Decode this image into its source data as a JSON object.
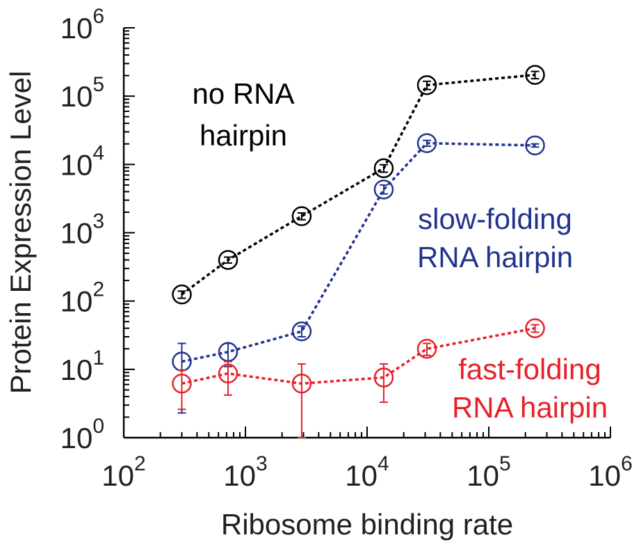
{
  "chart_data": {
    "type": "scatter",
    "title": "",
    "xlabel": "Ribosome binding rate",
    "ylabel": "Protein Expression Level",
    "xscale": "log",
    "yscale": "log",
    "xlim": [
      100,
      1000000
    ],
    "ylim": [
      1,
      1000000
    ],
    "grid": false,
    "x_ticks": [
      {
        "base": "10",
        "exp": "2",
        "value": 100
      },
      {
        "base": "10",
        "exp": "3",
        "value": 1000
      },
      {
        "base": "10",
        "exp": "4",
        "value": 10000
      },
      {
        "base": "10",
        "exp": "5",
        "value": 100000
      },
      {
        "base": "10",
        "exp": "6",
        "value": 1000000
      }
    ],
    "y_ticks": [
      {
        "base": "10",
        "exp": "0",
        "value": 1
      },
      {
        "base": "10",
        "exp": "1",
        "value": 10
      },
      {
        "base": "10",
        "exp": "2",
        "value": 100
      },
      {
        "base": "10",
        "exp": "3",
        "value": 1000
      },
      {
        "base": "10",
        "exp": "4",
        "value": 10000
      },
      {
        "base": "10",
        "exp": "5",
        "value": 100000
      },
      {
        "base": "10",
        "exp": "6",
        "value": 1000000
      }
    ],
    "series": [
      {
        "name": "no RNA hairpin",
        "label_lines": [
          "no RNA",
          "hairpin"
        ],
        "color": "#000000",
        "x": [
          300,
          720,
          2900,
          13700,
          31000,
          240000
        ],
        "y": [
          125,
          400,
          1750,
          8800,
          145000,
          205000
        ],
        "err_low": [
          110,
          360,
          1550,
          7700,
          125000,
          180000
        ],
        "err_high": [
          140,
          440,
          1950,
          9900,
          165000,
          230000
        ]
      },
      {
        "name": "slow-folding RNA hairpin",
        "label_lines": [
          "slow-folding",
          "RNA hairpin"
        ],
        "color": "#22338f",
        "x": [
          300,
          720,
          2900,
          13700,
          31000,
          240000
        ],
        "y": [
          13,
          18,
          36,
          4300,
          20500,
          19000
        ],
        "err_low": [
          2.3,
          11,
          30,
          3700,
          18500,
          18000
        ],
        "err_high": [
          24,
          24,
          43,
          5000,
          22500,
          20000
        ]
      },
      {
        "name": "fast-folding RNA hairpin",
        "label_lines": [
          "fast-folding",
          "RNA hairpin"
        ],
        "color": "#e8202a",
        "x": [
          300,
          720,
          2900,
          13700,
          31000,
          240000
        ],
        "y": [
          6.2,
          8.7,
          6.2,
          7.6,
          20,
          40
        ],
        "err_low": [
          2.6,
          4.2,
          1.0,
          3.3,
          16,
          35
        ],
        "err_high": [
          9.8,
          13,
          12,
          12,
          24,
          45
        ]
      }
    ]
  }
}
